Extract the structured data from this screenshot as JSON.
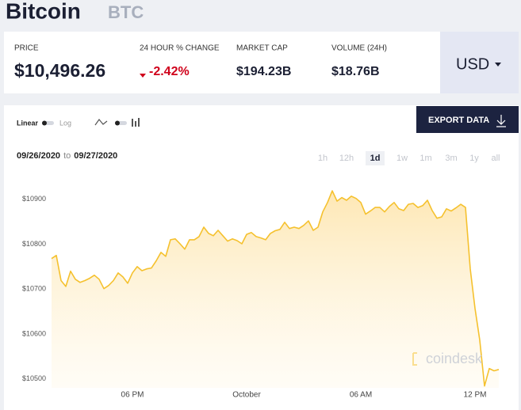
{
  "header": {
    "title": "Bitcoin",
    "symbol": "BTC"
  },
  "stats": [
    {
      "label": "PRICE",
      "value": "$10,496.26"
    },
    {
      "label": "24 HOUR % CHANGE",
      "value": "-2.42%"
    },
    {
      "label": "MARKET CAP",
      "value": "$194.23B"
    },
    {
      "label": "VOLUME (24H)",
      "value": "$18.76B"
    }
  ],
  "currency": "USD",
  "controls": {
    "linear": "Linear",
    "log": "Log",
    "export": "EXPORT DATA",
    "date_from": "09/26/2020",
    "date_sep": "to",
    "date_to": "09/27/2020",
    "ranges": [
      "1h",
      "12h",
      "1d",
      "1w",
      "1m",
      "3m",
      "1y",
      "all"
    ],
    "active_range": 2
  },
  "watermark": "coindesk",
  "chart_data": {
    "type": "line",
    "color": "#f5c12e",
    "grid": false,
    "x": [
      13.75,
      14,
      14.25,
      14.5,
      14.75,
      15,
      15.25,
      15.5,
      15.75,
      16,
      16.25,
      16.5,
      16.75,
      17,
      17.25,
      17.5,
      17.75,
      18,
      18.25,
      18.5,
      18.75,
      19,
      19.25,
      19.5,
      19.75,
      20,
      20.25,
      20.5,
      20.75,
      21,
      21.25,
      21.5,
      21.75,
      22,
      22.25,
      22.5,
      22.75,
      23,
      23.25,
      23.5,
      23.75,
      24,
      24.25,
      24.5,
      24.75,
      25,
      25.25,
      25.5,
      25.75,
      26,
      26.25,
      26.5,
      26.75,
      27,
      27.25,
      27.5,
      27.75,
      28,
      28.25,
      28.5,
      28.75,
      29,
      29.25,
      29.5,
      29.75,
      30,
      30.25,
      30.5,
      30.75,
      31,
      31.25,
      31.5,
      31.75,
      32,
      32.25,
      32.5,
      32.75,
      33,
      33.25,
      33.5,
      33.75,
      34,
      34.25,
      34.5,
      34.75,
      35,
      35.25,
      35.5,
      35.75,
      36,
      36.25,
      36.5,
      36.75,
      37,
      37.25
    ],
    "values": [
      10768,
      10775,
      10719,
      10706,
      10740,
      10722,
      10715,
      10719,
      10724,
      10731,
      10722,
      10701,
      10708,
      10719,
      10736,
      10727,
      10713,
      10736,
      10750,
      10741,
      10745,
      10747,
      10763,
      10782,
      10773,
      10810,
      10812,
      10801,
      10789,
      10810,
      10810,
      10817,
      10838,
      10824,
      10819,
      10831,
      10819,
      10807,
      10812,
      10808,
      10801,
      10822,
      10826,
      10817,
      10814,
      10810,
      10824,
      10830,
      10833,
      10849,
      10835,
      10838,
      10835,
      10842,
      10852,
      10831,
      10838,
      10872,
      10893,
      10919,
      10896,
      10904,
      10898,
      10907,
      10902,
      10893,
      10867,
      10874,
      10882,
      10882,
      10872,
      10884,
      10893,
      10879,
      10875,
      10889,
      10891,
      10882,
      10886,
      10898,
      10875,
      10858,
      10861,
      10879,
      10874,
      10881,
      10889,
      10882,
      10745,
      10657,
      10586,
      10484,
      10523,
      10518,
      10521
    ],
    "xlim": [
      13.75,
      37.5
    ],
    "xticks": [
      {
        "value": 18,
        "label": "06 PM"
      },
      {
        "value": 24,
        "label": "October"
      },
      {
        "value": 30,
        "label": "06 AM"
      },
      {
        "value": 36,
        "label": "12 PM"
      }
    ],
    "ylim": [
      10480,
      10965
    ],
    "yticks": [
      {
        "value": 10500,
        "label": "$10500"
      },
      {
        "value": 10600,
        "label": "$10600"
      },
      {
        "value": 10700,
        "label": "$10700"
      },
      {
        "value": 10800,
        "label": "$10800"
      },
      {
        "value": 10900,
        "label": "$10900"
      }
    ]
  }
}
